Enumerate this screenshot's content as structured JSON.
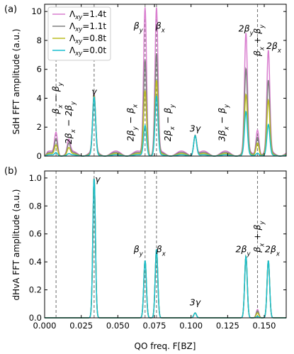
{
  "chart_data": [
    {
      "panel": "(a)",
      "type": "line",
      "ylabel": "SdH FFT amplitude (a.u.)",
      "ylim": [
        0,
        10.5
      ],
      "yticks": [
        0,
        2,
        4,
        6,
        8,
        10
      ],
      "xlim": [
        0,
        0.165
      ],
      "legend": {
        "placement": "top-left",
        "entries": [
          "Λ_xy=1.4t",
          "Λ_xy=1.1t",
          "Λ_xy=0.8t",
          "Λ_xy=0.0t"
        ]
      },
      "dashed_lines_x": [
        0.0078,
        0.0338,
        0.0686,
        0.0764,
        0.1454
      ],
      "series": [
        {
          "name": "Λ_xy=1.4t",
          "color": "#d97fcf",
          "peaks": [
            [
              0.0078,
              1.5
            ],
            [
              0.0165,
              0.9
            ],
            [
              0.0338,
              4.0
            ],
            [
              0.0686,
              10.2
            ],
            [
              0.0764,
              10.0
            ],
            [
              0.1028,
              1.4
            ],
            [
              0.1375,
              8.2
            ],
            [
              0.1454,
              1.8
            ],
            [
              0.1528,
              7.0
            ]
          ]
        },
        {
          "name": "Λ_xy=1.1t",
          "color": "#808080",
          "peaks": [
            [
              0.0078,
              1.1
            ],
            [
              0.0165,
              0.7
            ],
            [
              0.0338,
              4.0
            ],
            [
              0.0686,
              6.6
            ],
            [
              0.0764,
              6.9
            ],
            [
              0.1028,
              1.4
            ],
            [
              0.1375,
              5.8
            ],
            [
              0.1454,
              1.3
            ],
            [
              0.1528,
              5.0
            ]
          ]
        },
        {
          "name": "Λ_xy=0.8t",
          "color": "#bcbd22",
          "peaks": [
            [
              0.0078,
              0.7
            ],
            [
              0.0165,
              0.45
            ],
            [
              0.0338,
              4.0
            ],
            [
              0.0686,
              4.5
            ],
            [
              0.0764,
              5.1
            ],
            [
              0.1028,
              1.4
            ],
            [
              0.1375,
              4.1
            ],
            [
              0.1454,
              0.9
            ],
            [
              0.1528,
              3.7
            ]
          ]
        },
        {
          "name": "Λ_xy=0.0t",
          "color": "#17becf",
          "peaks": [
            [
              0.0078,
              0.2
            ],
            [
              0.0165,
              0.1
            ],
            [
              0.0338,
              4.0
            ],
            [
              0.0686,
              2.1
            ],
            [
              0.0764,
              4.1
            ],
            [
              0.1028,
              1.4
            ],
            [
              0.1375,
              3.0
            ],
            [
              0.1454,
              0.2
            ],
            [
              0.1528,
              2.1
            ]
          ]
        }
      ],
      "annotations": [
        {
          "text": "γ",
          "x": 0.0338,
          "y": 4.25
        },
        {
          "text": "βy",
          "x": 0.064,
          "y": 8.8
        },
        {
          "text": "βx",
          "x": 0.079,
          "y": 8.8
        },
        {
          "text": "3γ",
          "x": 0.1028,
          "y": 1.7
        },
        {
          "text": "2βy",
          "x": 0.1375,
          "y": 8.6
        },
        {
          "text": "2βx",
          "x": 0.1565,
          "y": 7.4
        },
        {
          "text": "βx − βy",
          "x": 0.0078,
          "y": 4.0,
          "rotated": true
        },
        {
          "text": "2βx − 2βy",
          "x": 0.0165,
          "y": 2.3,
          "rotated": true
        },
        {
          "text": "2βy − βx",
          "x": 0.0588,
          "y": 2.3,
          "rotated": true
        },
        {
          "text": "2βx − βy",
          "x": 0.0842,
          "y": 2.3,
          "rotated": true
        },
        {
          "text": "3βx − βy",
          "x": 0.1212,
          "y": 2.3,
          "rotated": true
        },
        {
          "text": "βx + βy",
          "x": 0.1454,
          "y": 8.0,
          "rotated": true
        }
      ]
    },
    {
      "panel": "(b)",
      "type": "line",
      "ylabel": "dHvA FFT amplitude (a.u.)",
      "xlabel": "QO freq. F[BZ]",
      "ylim": [
        0,
        1.05
      ],
      "yticks": [
        0.0,
        0.2,
        0.4,
        0.6,
        0.8,
        1.0
      ],
      "xlim": [
        0,
        0.165
      ],
      "xticks": [
        0.0,
        0.025,
        0.05,
        0.075,
        0.1,
        0.125,
        0.15
      ],
      "dashed_lines_x": [
        0.0078,
        0.0338,
        0.0686,
        0.0764,
        0.1454
      ],
      "series": [
        {
          "name": "Λ_xy=1.4t",
          "color": "#d97fcf",
          "peaks": [
            [
              0.0338,
              1.0
            ],
            [
              0.0686,
              0.41
            ],
            [
              0.0764,
              0.49
            ],
            [
              0.1028,
              0.035
            ],
            [
              0.1375,
              0.44
            ],
            [
              0.1454,
              0.06
            ],
            [
              0.1528,
              0.41
            ]
          ]
        },
        {
          "name": "Λ_xy=1.1t",
          "color": "#808080",
          "peaks": [
            [
              0.0338,
              1.0
            ],
            [
              0.0686,
              0.41
            ],
            [
              0.0764,
              0.49
            ],
            [
              0.1028,
              0.035
            ],
            [
              0.1375,
              0.44
            ],
            [
              0.1454,
              0.05
            ],
            [
              0.1528,
              0.41
            ]
          ]
        },
        {
          "name": "Λ_xy=0.8t",
          "color": "#bcbd22",
          "peaks": [
            [
              0.0338,
              1.0
            ],
            [
              0.0686,
              0.41
            ],
            [
              0.0764,
              0.49
            ],
            [
              0.1028,
              0.035
            ],
            [
              0.1375,
              0.44
            ],
            [
              0.1454,
              0.035
            ],
            [
              0.1528,
              0.41
            ]
          ]
        },
        {
          "name": "Λ_xy=0.0t",
          "color": "#17becf",
          "peaks": [
            [
              0.0338,
              1.0
            ],
            [
              0.0686,
              0.41
            ],
            [
              0.0764,
              0.49
            ],
            [
              0.1028,
              0.035
            ],
            [
              0.1375,
              0.44
            ],
            [
              0.1454,
              0.01
            ],
            [
              0.1528,
              0.41
            ]
          ]
        }
      ],
      "annotations": [
        {
          "text": "γ",
          "x": 0.0362,
          "y": 0.97
        },
        {
          "text": "βy",
          "x": 0.064,
          "y": 0.47
        },
        {
          "text": "βx",
          "x": 0.0795,
          "y": 0.47
        },
        {
          "text": "3γ",
          "x": 0.1028,
          "y": 0.09
        },
        {
          "text": "2βy",
          "x": 0.1355,
          "y": 0.47
        },
        {
          "text": "2βx",
          "x": 0.1555,
          "y": 0.47
        },
        {
          "text": "βx + βy",
          "x": 0.1454,
          "y": 0.58,
          "rotated": true
        }
      ]
    }
  ]
}
